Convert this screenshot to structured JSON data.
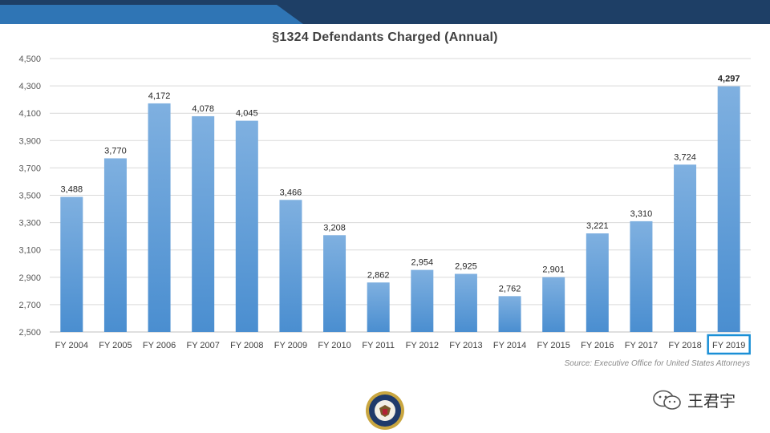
{
  "page": {
    "source_note": "Source: Executive Office for United States Attorneys",
    "watermark_text": "王君宇",
    "banner_colors": {
      "dark": "#1e3f66",
      "light": "#2f75b5"
    },
    "icons": [
      "doj-seal-icon",
      "wechat-icon"
    ]
  },
  "chart_data": {
    "type": "bar",
    "title": "§1324 Defendants Charged (Annual)",
    "xlabel": "",
    "ylabel": "",
    "categories": [
      "FY 2004",
      "FY 2005",
      "FY 2006",
      "FY 2007",
      "FY 2008",
      "FY 2009",
      "FY 2010",
      "FY 2011",
      "FY 2012",
      "FY 2013",
      "FY 2014",
      "FY 2015",
      "FY 2016",
      "FY 2017",
      "FY 2018",
      "FY 2019"
    ],
    "values": [
      3488,
      3770,
      4172,
      4078,
      4045,
      3466,
      3208,
      2862,
      2954,
      2925,
      2762,
      2901,
      3221,
      3310,
      3724,
      4297
    ],
    "value_labels": [
      "3,488",
      "3,770",
      "4,172",
      "4,078",
      "4,045",
      "3,466",
      "3,208",
      "2,862",
      "2,954",
      "2,925",
      "2,762",
      "2,901",
      "3,221",
      "3,310",
      "3,724",
      "4,297"
    ],
    "ylim": [
      2500,
      4500
    ],
    "yticks": [
      2500,
      2700,
      2900,
      3100,
      3300,
      3500,
      3700,
      3900,
      4100,
      4300,
      4500
    ],
    "ytick_labels": [
      "2,500",
      "2,700",
      "2,900",
      "3,100",
      "3,300",
      "3,500",
      "3,700",
      "3,900",
      "4,100",
      "4,300",
      "4,500"
    ],
    "grid": true,
    "highlight_category": "FY 2019",
    "bar_color_top": "#7fb0e0",
    "bar_color_bottom": "#4a8ed0",
    "highlight_box_color": "#1a8fd6"
  }
}
